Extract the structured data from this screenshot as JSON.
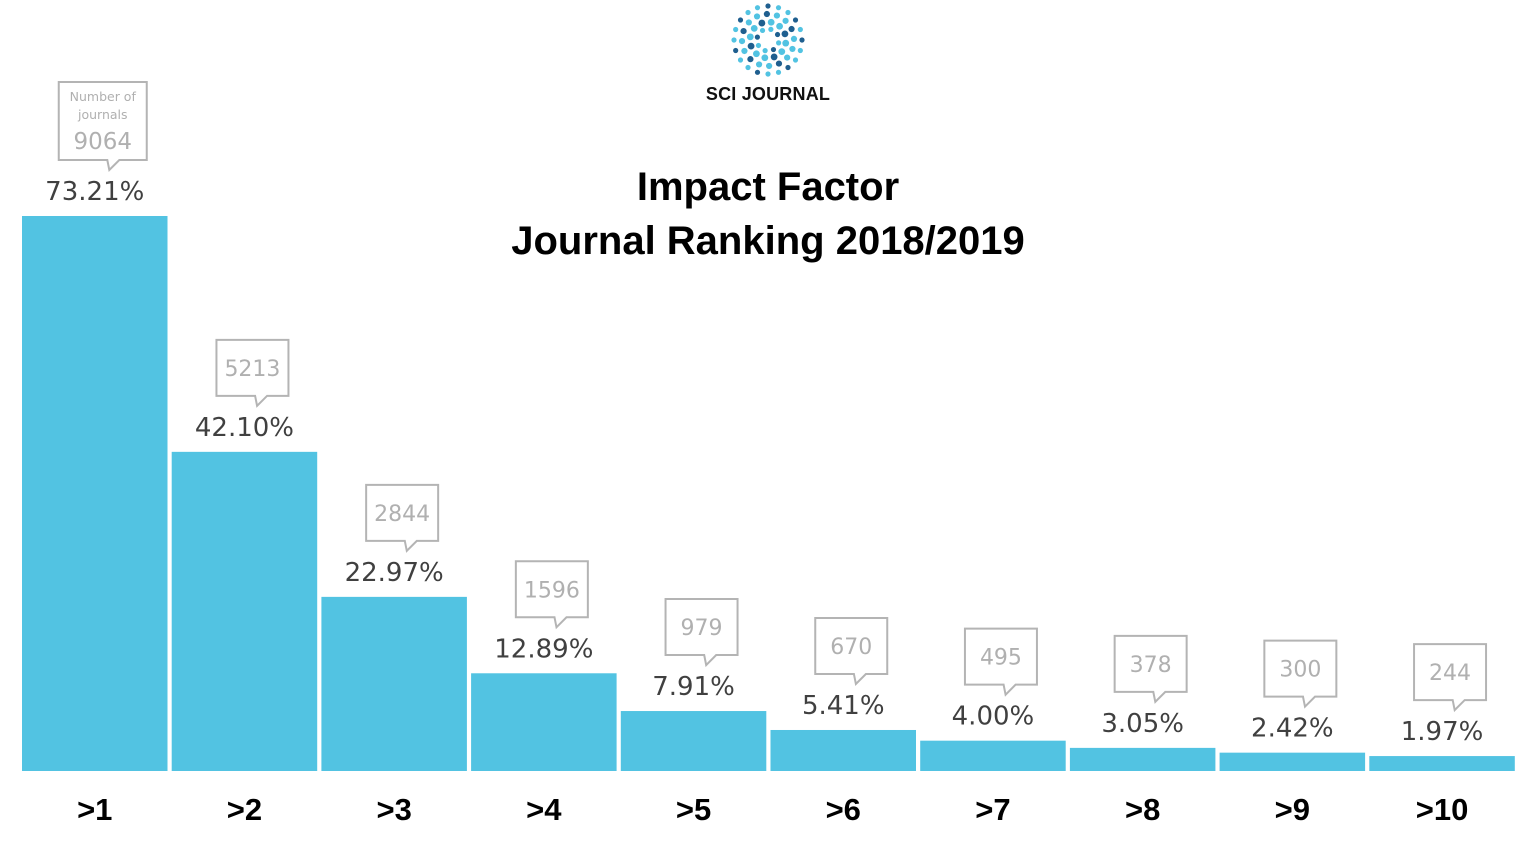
{
  "brand": {
    "name": "SCI JOURNAL"
  },
  "colors": {
    "bar": "#52c3e2",
    "callout_border": "#b4b4b4",
    "callout_text": "#b0b0b0",
    "label_text": "#404040",
    "logo_dark": "#1f5f8f",
    "logo_light": "#52c3e2"
  },
  "chart_data": {
    "type": "bar",
    "title": "Impact Factor",
    "subtitle": "Journal Ranking 2018/2019",
    "categories": [
      ">1",
      ">2",
      ">3",
      ">4",
      ">5",
      ">6",
      ">7",
      ">8",
      ">9",
      ">10"
    ],
    "series": [
      {
        "name": "",
        "values": [
          73.21,
          42.1,
          22.97,
          12.89,
          7.91,
          5.41,
          4.0,
          3.05,
          2.42,
          1.97
        ],
        "value_labels": [
          "73.21%",
          "42.10%",
          "22.97%",
          "12.89%",
          "7.91%",
          "5.41%",
          "4.00%",
          "3.05%",
          "2.42%",
          "1.97%"
        ]
      }
    ],
    "journal_counts": [
      9064,
      5213,
      2844,
      1596,
      979,
      670,
      495,
      378,
      300,
      244
    ],
    "count_caption": "Number of journals",
    "ylim": [
      0,
      73.21
    ],
    "grid": false,
    "legend": "none"
  }
}
